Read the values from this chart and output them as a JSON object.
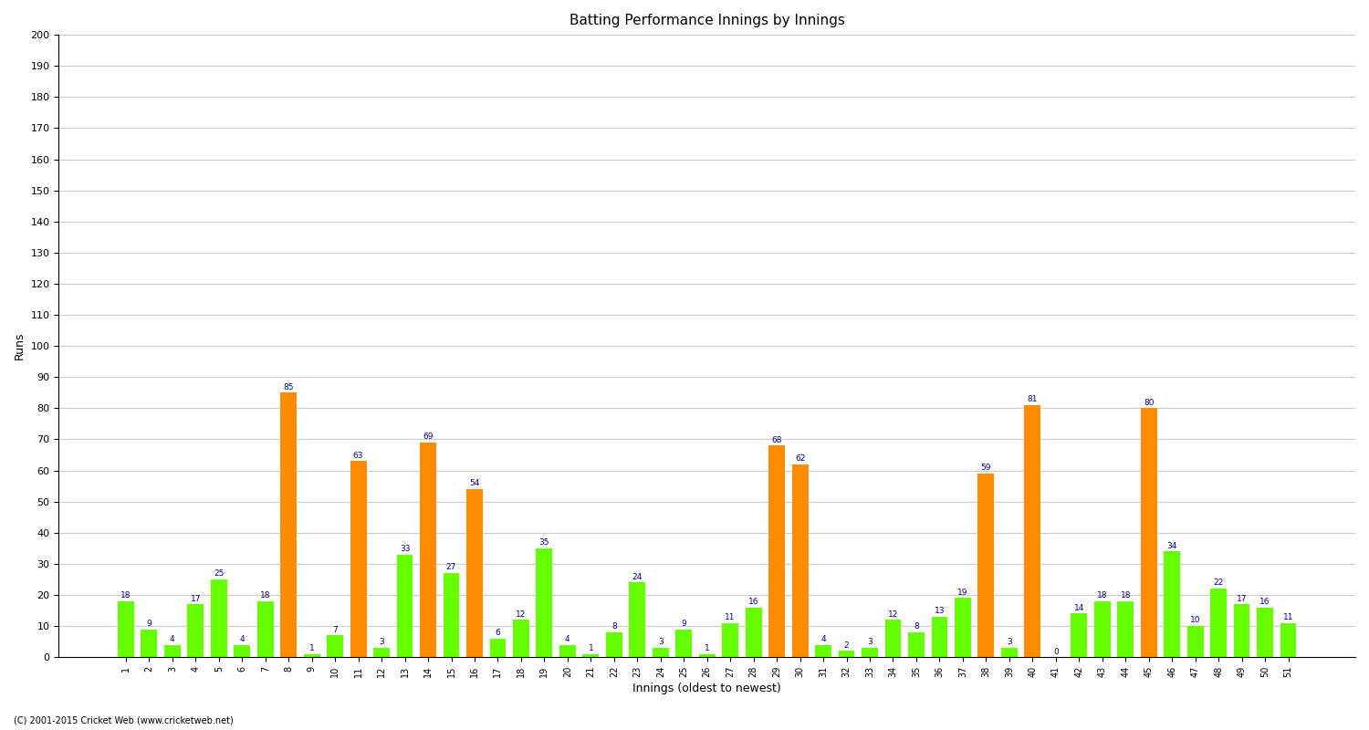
{
  "innings": [
    1,
    2,
    3,
    4,
    5,
    6,
    7,
    8,
    9,
    10,
    11,
    12,
    13,
    14,
    15,
    16,
    17,
    18,
    19,
    20,
    21,
    22,
    23,
    24,
    25,
    26,
    27,
    28,
    29,
    30,
    31,
    32,
    33,
    34,
    35,
    36,
    37,
    38,
    39,
    40,
    41,
    42,
    43,
    44,
    45,
    46,
    47,
    48,
    49,
    50,
    51
  ],
  "scores": [
    18,
    9,
    4,
    17,
    25,
    4,
    18,
    85,
    1,
    7,
    63,
    3,
    33,
    69,
    27,
    54,
    6,
    12,
    35,
    4,
    1,
    8,
    24,
    3,
    9,
    1,
    11,
    16,
    68,
    62,
    4,
    2,
    3,
    12,
    8,
    13,
    19,
    59,
    3,
    81,
    0,
    14,
    18,
    18,
    80,
    34,
    10,
    22,
    17,
    16,
    11
  ],
  "colors": [
    "green",
    "green",
    "green",
    "green",
    "green",
    "green",
    "green",
    "orange",
    "green",
    "green",
    "orange",
    "green",
    "green",
    "orange",
    "green",
    "orange",
    "green",
    "green",
    "green",
    "green",
    "green",
    "green",
    "green",
    "green",
    "green",
    "green",
    "green",
    "green",
    "orange",
    "orange",
    "green",
    "green",
    "green",
    "green",
    "green",
    "green",
    "green",
    "orange",
    "green",
    "orange",
    "green",
    "green",
    "green",
    "green",
    "orange",
    "green",
    "green",
    "green",
    "green",
    "green",
    "green"
  ],
  "title": "Batting Performance Innings by Innings",
  "xlabel": "Innings (oldest to newest)",
  "ylabel": "Runs",
  "ylim": [
    0,
    200
  ],
  "yticks": [
    0,
    10,
    20,
    30,
    40,
    50,
    60,
    70,
    80,
    90,
    100,
    110,
    120,
    130,
    140,
    150,
    160,
    170,
    180,
    190,
    200
  ],
  "bar_color_orange": "#FF8C00",
  "bar_color_green": "#66FF00",
  "label_color": "#00008B",
  "background_color": "#FFFFFF",
  "grid_color": "#CCCCCC",
  "footer": "(C) 2001-2015 Cricket Web (www.cricketweb.net)"
}
